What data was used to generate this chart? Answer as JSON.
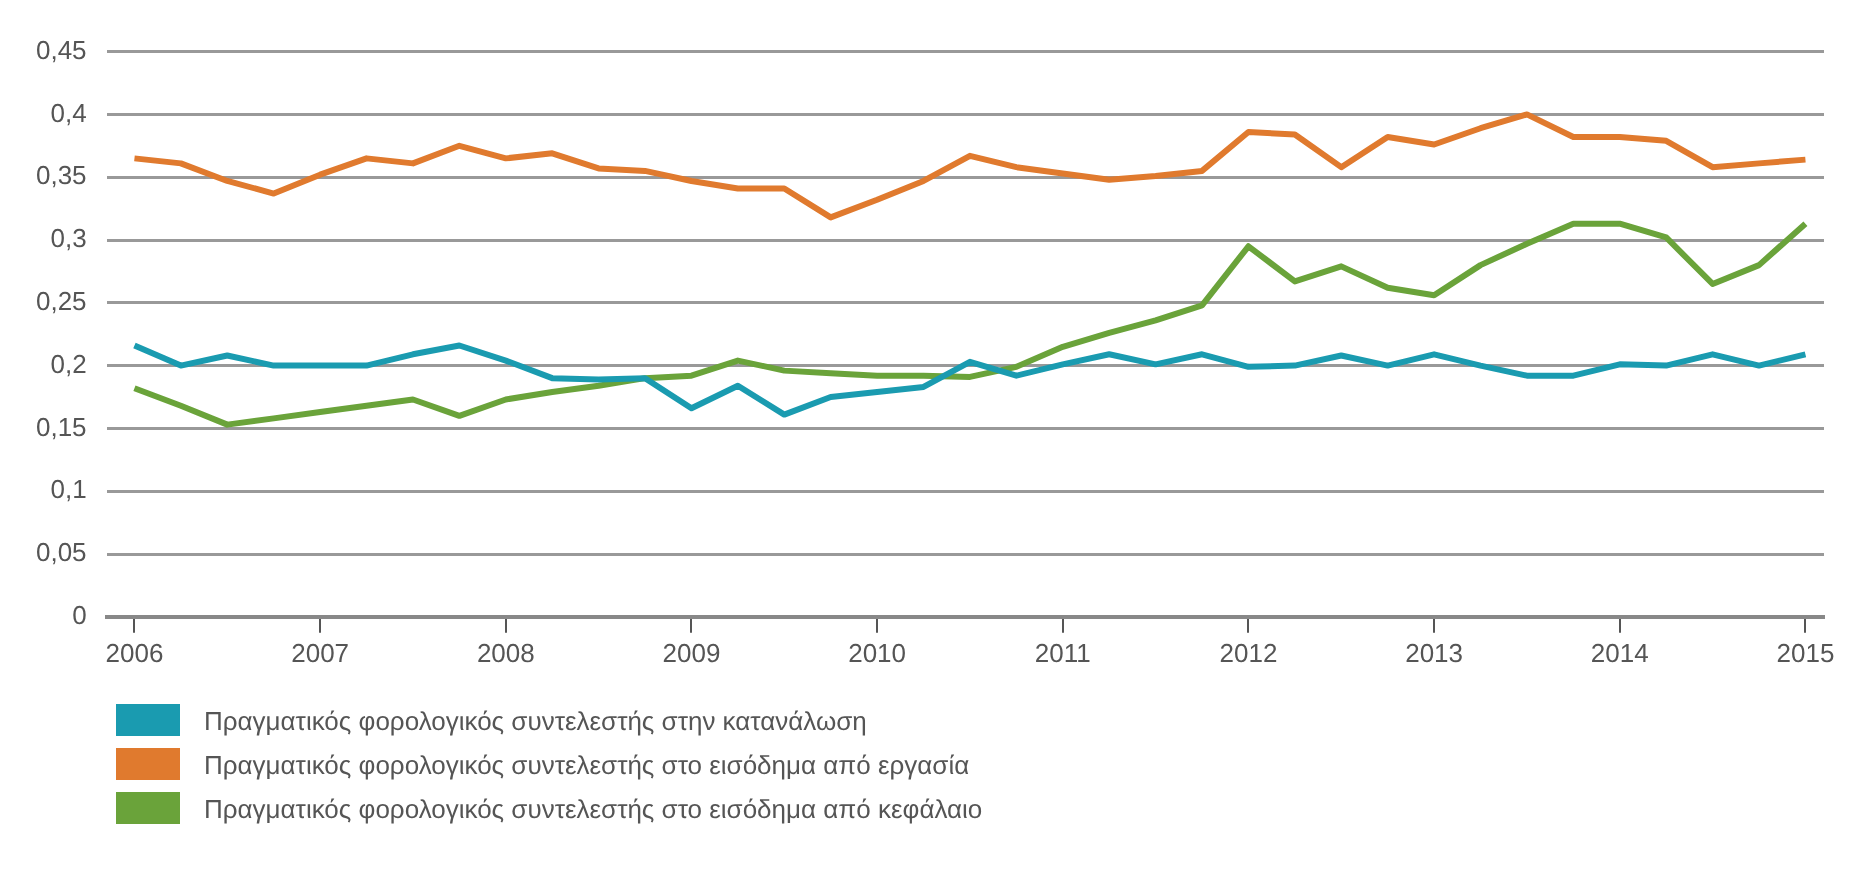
{
  "chart_data": {
    "type": "line",
    "x": [
      2006,
      2006.25,
      2006.5,
      2006.75,
      2007,
      2007.25,
      2007.5,
      2007.75,
      2008,
      2008.25,
      2008.5,
      2008.75,
      2009,
      2009.25,
      2009.5,
      2009.75,
      2010,
      2010.25,
      2010.5,
      2010.75,
      2011,
      2011.25,
      2011.5,
      2011.75,
      2012,
      2012.25,
      2012.5,
      2012.75,
      2013,
      2013.25,
      2013.5,
      2013.75,
      2014,
      2014.25,
      2014.5,
      2014.75,
      2015
    ],
    "series": [
      {
        "name": "Πραγματικός φορολογικός συντελεστής στην κατανάλωση",
        "color": "#1a9bb0",
        "values": [
          0.216,
          0.2,
          0.208,
          0.2,
          0.2,
          0.2,
          0.209,
          0.216,
          0.204,
          0.19,
          0.189,
          0.19,
          0.166,
          0.184,
          0.161,
          0.175,
          0.179,
          0.183,
          0.203,
          0.192,
          0.201,
          0.209,
          0.201,
          0.209,
          0.199,
          0.2,
          0.208,
          0.2,
          0.209,
          0.2,
          0.192,
          0.192,
          0.201,
          0.2,
          0.209,
          0.2,
          0.209
        ]
      },
      {
        "name": "Πραγματικός φορολογικός συντελεστής στο εισόδημα από εργασία",
        "color": "#e07a2e",
        "values": [
          0.365,
          0.361,
          0.347,
          0.337,
          0.352,
          0.365,
          0.361,
          0.375,
          0.365,
          0.369,
          0.357,
          0.355,
          0.347,
          0.341,
          0.341,
          0.318,
          0.332,
          0.347,
          0.367,
          0.358,
          0.353,
          0.348,
          0.351,
          0.355,
          0.386,
          0.384,
          0.358,
          0.382,
          0.376,
          0.389,
          0.4,
          0.382,
          0.382,
          0.379,
          0.358,
          0.361,
          0.364
        ]
      },
      {
        "name": "Πραγματικός φορολογικός συντελεστής στο εισόδημα από κεφάλαιο",
        "color": "#6aa33a",
        "values": [
          0.182,
          0.168,
          0.153,
          0.158,
          0.163,
          0.168,
          0.173,
          0.16,
          0.173,
          0.179,
          0.184,
          0.19,
          0.192,
          0.204,
          0.196,
          0.194,
          0.192,
          0.192,
          0.191,
          0.199,
          0.215,
          0.226,
          0.236,
          0.248,
          0.295,
          0.267,
          0.279,
          0.262,
          0.256,
          0.28,
          0.297,
          0.313,
          0.313,
          0.302,
          0.265,
          0.28,
          0.313
        ]
      }
    ],
    "xlim": [
      2005.85,
      2015.1
    ],
    "xticks": [
      2006,
      2007,
      2008,
      2009,
      2010,
      2011,
      2012,
      2013,
      2014,
      2015
    ],
    "ylim": [
      0,
      0.45
    ],
    "yticks": [
      0,
      {
        "value": 0.05,
        "label": "0,05"
      },
      {
        "value": 0.1,
        "label": "0,1"
      },
      {
        "value": 0.15,
        "label": "0,15"
      },
      {
        "value": 0.2,
        "label": "0,2"
      },
      {
        "value": 0.25,
        "label": "0,25"
      },
      {
        "value": 0.3,
        "label": "0,3"
      },
      {
        "value": 0.35,
        "label": "0,35"
      },
      {
        "value": 0.4,
        "label": "0,4"
      },
      {
        "value": 0.45,
        "label": "0,45"
      }
    ],
    "grid": "y",
    "legend": "bottom left",
    "marker": "none",
    "line_style": "solid"
  }
}
